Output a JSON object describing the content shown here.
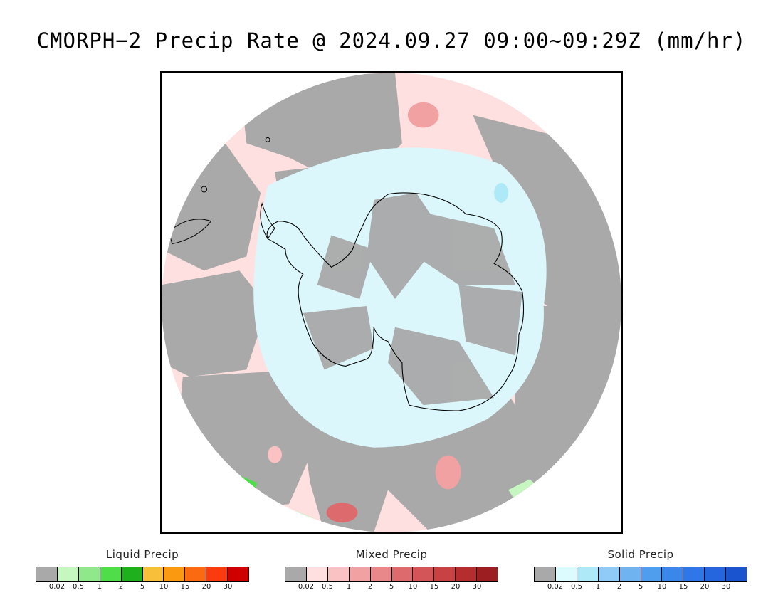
{
  "title": "CMORPH−2 Precip Rate @ 2024.09.27 09:00~09:29Z (mm/hr)",
  "map": {
    "projection": "south-polar-stereographic",
    "region": "Antarctica / Southern Ocean",
    "colors": {
      "no_data_grey": "#a9a9a9",
      "mixed_light": "#ffe0e0",
      "solid_light": "#dcf7fb",
      "coastline": "#000000"
    }
  },
  "legends": [
    {
      "title": "Liquid Precip",
      "colors": [
        "#a9a9a9",
        "#c6f7c0",
        "#8fe889",
        "#4fde4a",
        "#1fb01d",
        "#f8c03a",
        "#fb9a10",
        "#fb6a10",
        "#fb3a10",
        "#d00000"
      ],
      "ticks": [
        "0.02",
        "0.5",
        "1",
        "2",
        "5",
        "10",
        "15",
        "20",
        "30"
      ]
    },
    {
      "title": "Mixed Precip",
      "colors": [
        "#a9a9a9",
        "#ffe0e0",
        "#fbc2c4",
        "#f2a1a3",
        "#e9888a",
        "#dd6a6c",
        "#d45557",
        "#c84244",
        "#b52d2f",
        "#9d1e20"
      ],
      "ticks": [
        "0.02",
        "0.5",
        "1",
        "2",
        "5",
        "10",
        "15",
        "20",
        "30"
      ]
    },
    {
      "title": "Solid Precip",
      "colors": [
        "#a9a9a9",
        "#dcfbff",
        "#aee9f8",
        "#90cbf7",
        "#6fb3f1",
        "#4f9ded",
        "#3a87ea",
        "#2f76e8",
        "#2566df",
        "#1a55cf"
      ],
      "ticks": [
        "0.02",
        "0.5",
        "1",
        "2",
        "5",
        "10",
        "15",
        "20",
        "30"
      ]
    }
  ]
}
